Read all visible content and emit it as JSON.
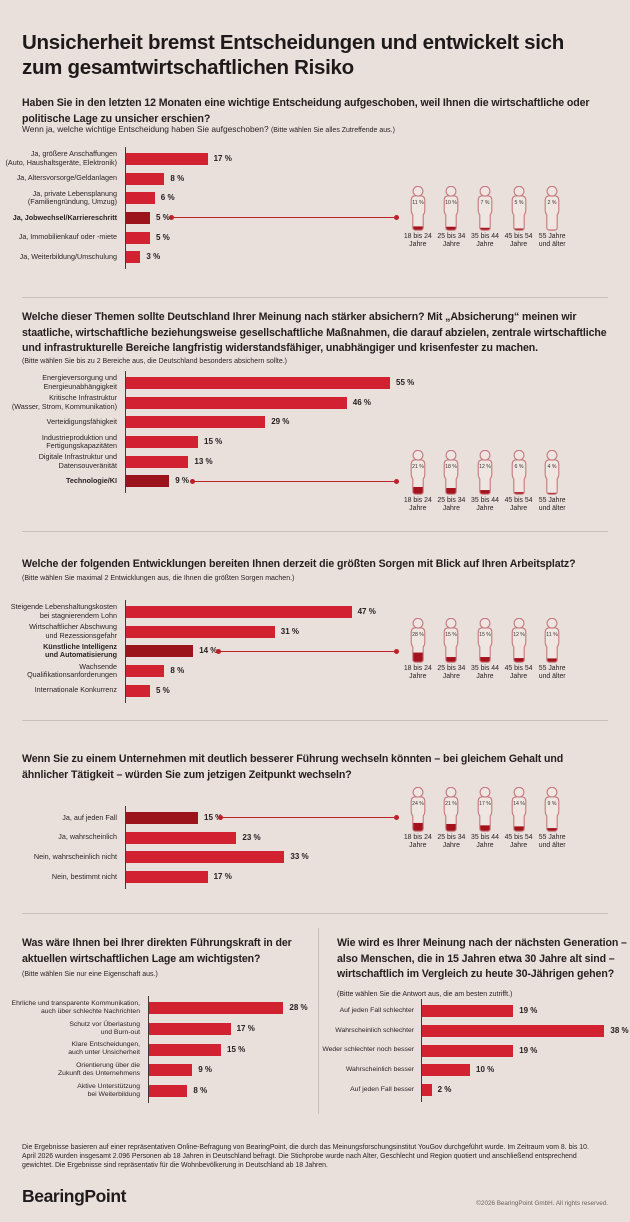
{
  "header": {
    "title": "Unsicherheit bremst Entscheidungen und entwickelt sich zum gesamtwirtschaftlichen Risiko"
  },
  "age_groups": [
    "18 bis 24\nJahre",
    "25 bis 34\nJahre",
    "35 bis 44\nJahre",
    "45 bis 54\nJahre",
    "55 Jahre\nund älter"
  ],
  "chart_data": [
    {
      "id": "postponed-decisions",
      "type": "bar",
      "title": "Haben Sie in den letzten 12 Monaten eine wichtige Entscheidung aufgeschoben, weil Ihnen die wirtschaftliche oder politische Lage zu unsicher erschien?",
      "subtitle": "Wenn ja, welche wichtige Entscheidung haben Sie aufgeschoben?",
      "note": "(Bitte wählen Sie alles Zutreffende aus.)",
      "unit": "%",
      "categories": [
        "Ja, größere Anschaffungen\n(Auto, Haushaltsgeräte, Elektronik)",
        "Ja, Altersvorsorge/Geldanlagen",
        "Ja, private Lebensplanung\n(Familiengründung, Umzug)",
        "Ja, Jobwechsel/Karriereschritt",
        "Ja, Immobilienkauf oder -miete",
        "Ja, Weiterbildung/Umschulung"
      ],
      "values": [
        17,
        8,
        6,
        5,
        5,
        3
      ],
      "highlight_index": 3,
      "highlight_bold": true,
      "highlight_by_age": [
        11,
        10,
        7,
        5,
        2
      ]
    },
    {
      "id": "topics-to-secure",
      "type": "bar",
      "title": "Welche dieser Themen sollte Deutschland Ihrer Meinung nach stärker absichern? Mit „Absicherung“ meinen wir staatliche, wirtschaftliche beziehungsweise gesellschaftliche Maßnahmen, die darauf abzielen, zentrale wirtschaftliche und infrastrukturelle Bereiche langfristig widerstandsfähiger, unabhängiger und krisenfester zu machen.",
      "note": "(Bitte wählen Sie bis zu 2 Bereiche aus, die Deutschland besonders absichern sollte.)",
      "unit": "%",
      "categories": [
        "Energieversorgung und\nEnergieunabhängigkeit",
        "Kritische Infrastruktur\n(Wasser, Strom, Kommunikation)",
        "Verteidigungsfähigkeit",
        "Industrieproduktion und\nFertigungskapazitäten",
        "Digitale Infrastruktur und\nDatensouveränität",
        "Technologie/KI"
      ],
      "values": [
        55,
        46,
        29,
        15,
        13,
        9
      ],
      "highlight_index": 5,
      "highlight_bold": true,
      "highlight_by_age": [
        21,
        18,
        12,
        6,
        4
      ]
    },
    {
      "id": "workplace-worries",
      "type": "bar",
      "title": "Welche der folgenden Entwicklungen bereiten Ihnen derzeit die größten Sorgen mit Blick auf Ihren Arbeitsplatz?",
      "note": "(Bitte wählen Sie maximal 2 Entwicklungen aus, die Ihnen die größten Sorgen machen.)",
      "unit": "%",
      "categories": [
        "Steigende Lebenshaltungskosten\nbei stagnierendem Lohn",
        "Wirtschaftlicher Abschwung\nund Rezessionsgefahr",
        "Künstliche Intelligenz\nund Automatisierung",
        "Wachsende\nQualifikationsanforderungen",
        "Internationale Konkurrenz"
      ],
      "values": [
        47,
        31,
        14,
        8,
        5
      ],
      "highlight_index": 2,
      "highlight_bold": true,
      "highlight_by_age": [
        28,
        15,
        15,
        12,
        11
      ]
    },
    {
      "id": "would-you-switch",
      "type": "bar",
      "title": "Wenn Sie zu einem Unternehmen mit deutlich besserer Führung wechseln könnten – bei gleichem Gehalt und ähnlicher Tätigkeit – würden Sie zum jetzigen Zeitpunkt wechseln?",
      "unit": "%",
      "categories": [
        "Ja, auf jeden Fall",
        "Ja, wahrscheinlich",
        "Nein, wahrscheinlich nicht",
        "Nein, bestimmt nicht"
      ],
      "values": [
        15,
        23,
        33,
        17
      ],
      "highlight_index": 0,
      "highlight_bold": false,
      "highlight_by_age": [
        24,
        21,
        17,
        14,
        9
      ]
    },
    {
      "id": "leadership-priority",
      "type": "bar",
      "title": "Was wäre Ihnen bei Ihrer direkten Führungskraft in der aktuellen wirtschaftlichen Lage am wichtigsten?",
      "note": "(Bitte wählen Sie nur eine Eigenschaft aus.)",
      "unit": "%",
      "categories": [
        "Ehrliche und transparente Kommunikation,\nauch über schlechte Nachrichten",
        "Schutz vor Überlastung\nund Burn-out",
        "Klare Entscheidungen,\nauch unter Unsicherheit",
        "Orientierung über die\nZukunft des Unternehmens",
        "Aktive Unterstützung\nbei Weiterbildung"
      ],
      "values": [
        28,
        17,
        15,
        9,
        8
      ]
    },
    {
      "id": "next-generation-outlook",
      "type": "bar",
      "title": "Wie wird es Ihrer Meinung nach der nächsten Generation – also Menschen, die in 15 Jahren etwa 30 Jahre alt sind – wirtschaftlich im Vergleich zu heute 30-Jährigen gehen?",
      "note": "(Bitte wählen Sie die Antwort aus, die am besten zutrifft.)",
      "unit": "%",
      "categories": [
        "Auf jeden Fall schlechter",
        "Wahrscheinlich schlechter",
        "Weder schlechter noch besser",
        "Wahrscheinlich besser",
        "Auf jeden Fall besser"
      ],
      "values": [
        19,
        38,
        19,
        10,
        2
      ]
    }
  ],
  "footer": {
    "methodology": "Die Ergebnisse basieren auf einer repräsentativen Online-Befragung von BearingPoint, die durch das Meinungsforschungsinstitut YouGov durchgeführt wurde. Im Zeitraum vom 8. bis 10. April 2026 wurden insgesamt 2.096 Personen ab 18 Jahren in Deutschland befragt. Die Stichprobe wurde nach Alter, Geschlecht und Region quotiert und anschließend entsprechend gewichtet. Die Ergebnisse sind repräsentativ für die Wohnbevölkerung in Deutschland ab 18 Jahren.",
    "logo": "BearingPoint",
    "copyright": "©2026 BearingPoint GmbH. All rights reserved."
  },
  "colors": {
    "background": "#E9DFDB",
    "bar": "#D22130",
    "bar_highlight": "#9B141B",
    "person_outline": "#C4787D",
    "person_inner": "#EFE6E2",
    "person_fill": "#A5121B",
    "connector": "#BE2026",
    "divider": "#C9C0BC",
    "text": "#262021"
  }
}
